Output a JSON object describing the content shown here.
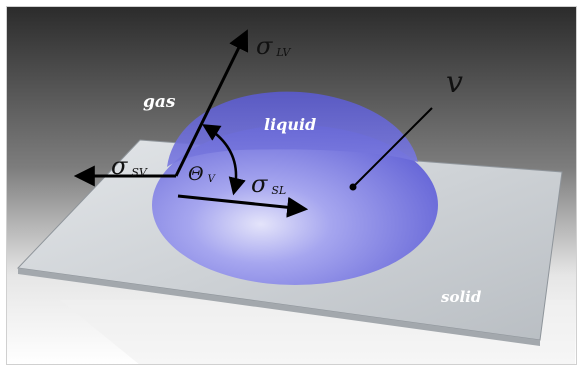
{
  "labels": {
    "gas": "gas",
    "liquid": "liquid",
    "solid": "solid",
    "volume": "v",
    "sigma_lv_symbol": "σ",
    "sigma_lv_sub": "LV",
    "sigma_sv_symbol": "σ",
    "sigma_sv_sub": "SV",
    "sigma_sl_symbol": "σ",
    "sigma_sl_sub": "SL",
    "theta_symbol": "Θ",
    "theta_sub": "V"
  },
  "colors": {
    "background_top": "#2a2a2a",
    "background_bottom": "#ffffff",
    "surface": "#c9cdd1",
    "surface_edge": "#9ea3a8",
    "droplet": "#6f6fe0",
    "droplet_highlight": "#d9d9f7",
    "arrows": "#000000"
  }
}
